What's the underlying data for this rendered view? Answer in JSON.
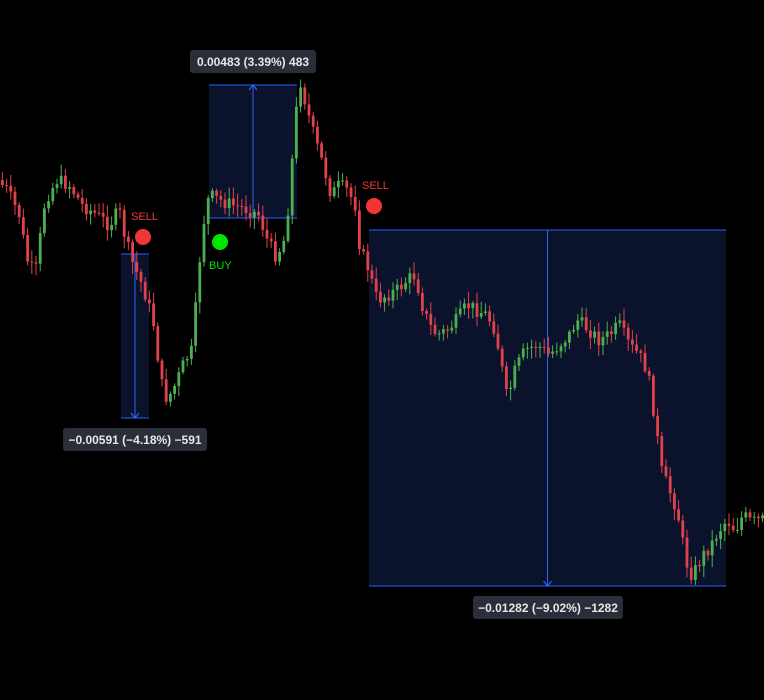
{
  "chart_data": {
    "type": "candlestick",
    "colors": {
      "background": "#000000",
      "up": "#4caf50",
      "down": "#e0424b",
      "measure_line": "#2962ff",
      "measure_fill": "#0b1530",
      "label_bg": "#2a2e39",
      "label_text": "#e6e6e6",
      "sell": "#f23636",
      "buy": "#00e600"
    },
    "signals": [
      {
        "type": "sell",
        "label": "SELL"
      },
      {
        "type": "buy",
        "label": "BUY"
      },
      {
        "type": "sell",
        "label": "SELL"
      }
    ],
    "measurements": [
      {
        "label": "−0.00591 (−4.18%) −591",
        "direction": "down"
      },
      {
        "label": "0.00483 (3.39%) 483",
        "direction": "up"
      },
      {
        "label": "−0.01282 (−9.02%) −1282",
        "direction": "down"
      }
    ]
  }
}
